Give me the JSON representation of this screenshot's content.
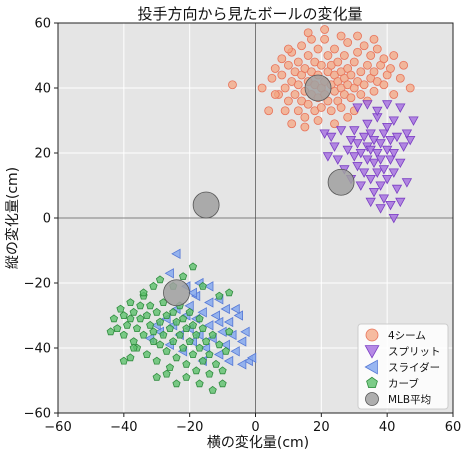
{
  "chart_data": {
    "type": "scatter",
    "title": "投手方向から見たボールの変化量",
    "xlabel": "横の変化量(cm)",
    "ylabel": "縦の変化量(cm)",
    "xlim": [
      -60,
      60
    ],
    "ylim": [
      -60,
      60
    ],
    "xticks": [
      -60,
      -40,
      -20,
      0,
      20,
      40,
      60
    ],
    "yticks": [
      -60,
      -40,
      -20,
      0,
      20,
      40,
      60
    ],
    "grid": true,
    "legend_position": "bottom-right",
    "colors": {
      "background": "#e5e5e5",
      "grid": "#ffffff",
      "four_seam": "#f4a582",
      "four_seam_edge": "#e8735a",
      "split": "#a874e0",
      "split_edge": "#7b3fc4",
      "slider": "#86a9ee",
      "slider_edge": "#5578d6",
      "curve": "#5cc06c",
      "curve_edge": "#2f8c3e",
      "mlb": "#a0a0a0",
      "mlb_edge": "#555555"
    },
    "series": [
      {
        "name": "4シーム",
        "marker": "circle",
        "points": [
          [
            -7,
            41
          ],
          [
            2,
            40
          ],
          [
            4,
            33
          ],
          [
            5,
            43
          ],
          [
            6,
            46
          ],
          [
            7,
            38
          ],
          [
            8,
            44
          ],
          [
            8,
            49
          ],
          [
            9,
            40
          ],
          [
            9,
            33
          ],
          [
            10,
            36
          ],
          [
            10,
            47
          ],
          [
            11,
            42
          ],
          [
            11,
            51
          ],
          [
            12,
            38
          ],
          [
            12,
            45
          ],
          [
            13,
            33
          ],
          [
            13,
            41
          ],
          [
            13,
            48
          ],
          [
            14,
            36
          ],
          [
            14,
            44
          ],
          [
            14,
            53
          ],
          [
            15,
            39
          ],
          [
            15,
            46
          ],
          [
            15,
            31
          ],
          [
            16,
            42
          ],
          [
            16,
            35
          ],
          [
            16,
            50
          ],
          [
            17,
            38
          ],
          [
            17,
            45
          ],
          [
            17,
            55
          ],
          [
            18,
            41
          ],
          [
            18,
            33
          ],
          [
            18,
            48
          ],
          [
            19,
            37
          ],
          [
            19,
            44
          ],
          [
            19,
            52
          ],
          [
            20,
            40
          ],
          [
            20,
            34
          ],
          [
            20,
            47
          ],
          [
            21,
            42
          ],
          [
            21,
            38
          ],
          [
            21,
            55
          ],
          [
            22,
            45
          ],
          [
            22,
            36
          ],
          [
            22,
            50
          ],
          [
            23,
            41
          ],
          [
            23,
            33
          ],
          [
            23,
            47
          ],
          [
            24,
            39
          ],
          [
            24,
            44
          ],
          [
            24,
            52
          ],
          [
            25,
            36
          ],
          [
            25,
            42
          ],
          [
            25,
            48
          ],
          [
            26,
            40
          ],
          [
            26,
            45
          ],
          [
            26,
            34
          ],
          [
            27,
            43
          ],
          [
            27,
            50
          ],
          [
            27,
            38
          ],
          [
            28,
            41
          ],
          [
            28,
            46
          ],
          [
            28,
            54
          ],
          [
            29,
            37
          ],
          [
            29,
            44
          ],
          [
            30,
            40
          ],
          [
            30,
            48
          ],
          [
            30,
            33
          ],
          [
            31,
            42
          ],
          [
            31,
            51
          ],
          [
            32,
            38
          ],
          [
            32,
            45
          ],
          [
            33,
            41
          ],
          [
            33,
            53
          ],
          [
            34,
            36
          ],
          [
            34,
            47
          ],
          [
            35,
            43
          ],
          [
            35,
            50
          ],
          [
            36,
            39
          ],
          [
            36,
            45
          ],
          [
            37,
            42
          ],
          [
            37,
            52
          ],
          [
            38,
            47
          ],
          [
            39,
            41
          ],
          [
            39,
            49
          ],
          [
            40,
            44
          ],
          [
            41,
            46
          ],
          [
            42,
            38
          ],
          [
            42,
            50
          ],
          [
            44,
            43
          ],
          [
            45,
            47
          ],
          [
            47,
            40
          ],
          [
            11,
            29
          ],
          [
            15,
            28
          ],
          [
            19,
            30
          ],
          [
            24,
            29
          ],
          [
            28,
            31
          ],
          [
            21,
            58
          ],
          [
            26,
            56
          ],
          [
            31,
            56
          ],
          [
            36,
            55
          ],
          [
            16,
            57
          ],
          [
            10,
            52
          ],
          [
            6,
            38
          ]
        ]
      },
      {
        "name": "スプリット",
        "marker": "triangle-down",
        "points": [
          [
            21,
            26
          ],
          [
            23,
            25
          ],
          [
            22,
            19
          ],
          [
            24,
            22
          ],
          [
            25,
            18
          ],
          [
            26,
            27
          ],
          [
            27,
            15
          ],
          [
            28,
            21
          ],
          [
            29,
            24
          ],
          [
            29,
            12
          ],
          [
            30,
            19
          ],
          [
            30,
            27
          ],
          [
            31,
            16
          ],
          [
            31,
            23
          ],
          [
            32,
            20
          ],
          [
            32,
            10
          ],
          [
            33,
            25
          ],
          [
            33,
            14
          ],
          [
            34,
            22
          ],
          [
            34,
            18
          ],
          [
            34,
            29
          ],
          [
            35,
            12
          ],
          [
            35,
            21
          ],
          [
            35,
            26
          ],
          [
            36,
            17
          ],
          [
            36,
            24
          ],
          [
            36,
            8
          ],
          [
            37,
            20
          ],
          [
            37,
            14
          ],
          [
            37,
            31
          ],
          [
            38,
            23
          ],
          [
            38,
            10
          ],
          [
            38,
            18
          ],
          [
            39,
            26
          ],
          [
            39,
            15
          ],
          [
            39,
            6
          ],
          [
            40,
            21
          ],
          [
            40,
            12
          ],
          [
            40,
            28
          ],
          [
            41,
            18
          ],
          [
            41,
            24
          ],
          [
            42,
            14
          ],
          [
            42,
            20
          ],
          [
            43,
            9
          ],
          [
            43,
            25
          ],
          [
            44,
            17
          ],
          [
            45,
            22
          ],
          [
            46,
            11
          ],
          [
            47,
            24
          ],
          [
            35,
            5
          ],
          [
            38,
            3
          ],
          [
            41,
            4
          ],
          [
            44,
            5
          ],
          [
            31,
            34
          ],
          [
            34,
            35
          ],
          [
            37,
            33
          ],
          [
            40,
            35
          ],
          [
            44,
            34
          ],
          [
            42,
            30
          ],
          [
            48,
            30
          ],
          [
            46,
            26
          ],
          [
            42,
            0
          ]
        ]
      },
      {
        "name": "スライダー",
        "marker": "triangle-left",
        "points": [
          [
            -32,
            -37
          ],
          [
            -29,
            -35
          ],
          [
            -27,
            -31
          ],
          [
            -26,
            -39
          ],
          [
            -25,
            -33
          ],
          [
            -24,
            -28
          ],
          [
            -23,
            -36
          ],
          [
            -22,
            -41
          ],
          [
            -21,
            -30
          ],
          [
            -20,
            -34
          ],
          [
            -20,
            -27
          ],
          [
            -19,
            -38
          ],
          [
            -18,
            -31
          ],
          [
            -18,
            -24
          ],
          [
            -17,
            -36
          ],
          [
            -16,
            -29
          ],
          [
            -15,
            -40
          ],
          [
            -14,
            -33
          ],
          [
            -14,
            -26
          ],
          [
            -13,
            -37
          ],
          [
            -12,
            -30
          ],
          [
            -11,
            -42
          ],
          [
            -11,
            -25
          ],
          [
            -10,
            -35
          ],
          [
            -9,
            -28
          ],
          [
            -9,
            -39
          ],
          [
            -8,
            -32
          ],
          [
            -8,
            -44
          ],
          [
            -7,
            -36
          ],
          [
            -6,
            -41
          ],
          [
            -5,
            -30
          ],
          [
            -4,
            -38
          ],
          [
            -3,
            -35
          ],
          [
            -2,
            -44
          ],
          [
            -1,
            -43
          ],
          [
            -17,
            -20
          ],
          [
            -21,
            -21
          ],
          [
            -24,
            -11
          ],
          [
            -19,
            -23
          ],
          [
            -26,
            -17
          ],
          [
            -14,
            -21
          ],
          [
            -30,
            -33
          ],
          [
            -6,
            -28
          ],
          [
            -11,
            -32
          ],
          [
            -4,
            -45
          ],
          [
            -16,
            -44
          ]
        ]
      },
      {
        "name": "カーブ",
        "marker": "pentagon",
        "points": [
          [
            -43,
            -31
          ],
          [
            -42,
            -34
          ],
          [
            -41,
            -28
          ],
          [
            -40,
            -30
          ],
          [
            -40,
            -36
          ],
          [
            -39,
            -33
          ],
          [
            -38,
            -26
          ],
          [
            -38,
            -31
          ],
          [
            -37,
            -38
          ],
          [
            -37,
            -29
          ],
          [
            -36,
            -34
          ],
          [
            -36,
            -40
          ],
          [
            -35,
            -27
          ],
          [
            -35,
            -31
          ],
          [
            -34,
            -36
          ],
          [
            -34,
            -24
          ],
          [
            -33,
            -30
          ],
          [
            -33,
            -42
          ],
          [
            -32,
            -33
          ],
          [
            -32,
            -27
          ],
          [
            -31,
            -38
          ],
          [
            -31,
            -35
          ],
          [
            -30,
            -29
          ],
          [
            -30,
            -44
          ],
          [
            -29,
            -32
          ],
          [
            -29,
            -39
          ],
          [
            -28,
            -26
          ],
          [
            -28,
            -36
          ],
          [
            -27,
            -41
          ],
          [
            -27,
            -30
          ],
          [
            -26,
            -34
          ],
          [
            -26,
            -46
          ],
          [
            -25,
            -29
          ],
          [
            -25,
            -38
          ],
          [
            -24,
            -32
          ],
          [
            -24,
            -43
          ],
          [
            -23,
            -36
          ],
          [
            -23,
            -27
          ],
          [
            -22,
            -40
          ],
          [
            -22,
            -31
          ],
          [
            -21,
            -45
          ],
          [
            -21,
            -34
          ],
          [
            -20,
            -38
          ],
          [
            -20,
            -29
          ],
          [
            -19,
            -42
          ],
          [
            -19,
            -33
          ],
          [
            -18,
            -47
          ],
          [
            -18,
            -36
          ],
          [
            -17,
            -31
          ],
          [
            -17,
            -40
          ],
          [
            -16,
            -44
          ],
          [
            -16,
            -34
          ],
          [
            -15,
            -38
          ],
          [
            -14,
            -42
          ],
          [
            -13,
            -36
          ],
          [
            -12,
            -45
          ],
          [
            -11,
            -39
          ],
          [
            -10,
            -47
          ],
          [
            -9,
            -41
          ],
          [
            -8,
            -35
          ],
          [
            -17,
            -51
          ],
          [
            -13,
            -53
          ],
          [
            -10,
            -51
          ],
          [
            -21,
            -49
          ],
          [
            -24,
            -51
          ],
          [
            -34,
            -23
          ],
          [
            -31,
            -21
          ],
          [
            -29,
            -19
          ],
          [
            -25,
            -21
          ],
          [
            -22,
            -18
          ],
          [
            -19,
            -15
          ],
          [
            -16,
            -21
          ],
          [
            -11,
            -24
          ],
          [
            -8,
            -23
          ],
          [
            -37,
            -40
          ],
          [
            -27,
            -48
          ],
          [
            -38,
            -43
          ],
          [
            -44,
            -35
          ],
          [
            -40,
            -44
          ],
          [
            -30,
            -49
          ],
          [
            -14,
            -48
          ]
        ]
      },
      {
        "name": "MLB平均",
        "marker": "circle-large",
        "points": [
          [
            19,
            40
          ],
          [
            26,
            11
          ],
          [
            -15,
            4
          ],
          [
            -24,
            -23
          ]
        ]
      }
    ]
  }
}
